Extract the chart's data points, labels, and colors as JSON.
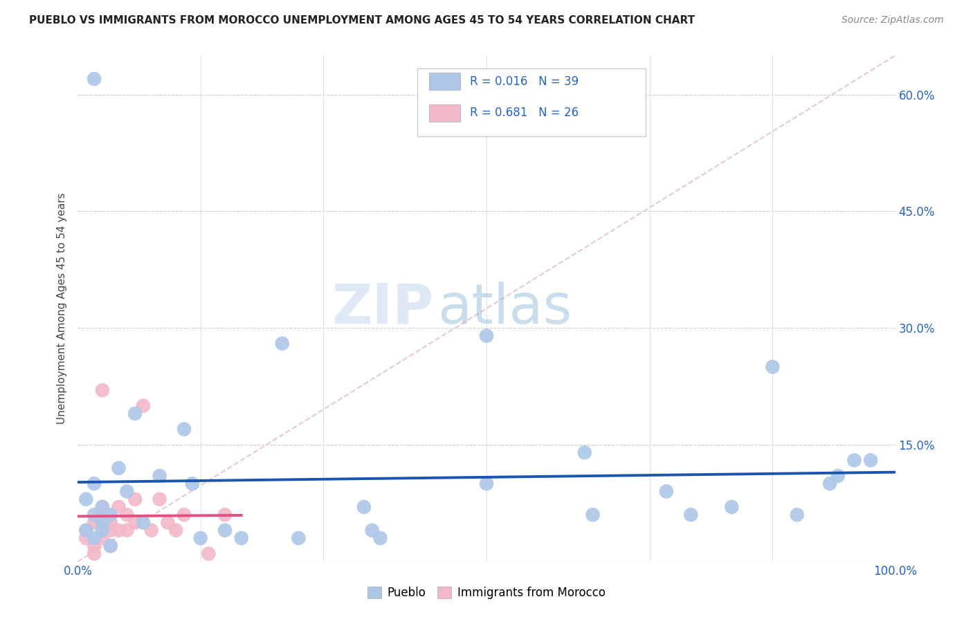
{
  "title": "PUEBLO VS IMMIGRANTS FROM MOROCCO UNEMPLOYMENT AMONG AGES 45 TO 54 YEARS CORRELATION CHART",
  "source": "Source: ZipAtlas.com",
  "ylabel": "Unemployment Among Ages 45 to 54 years",
  "background_color": "#ffffff",
  "legend_r1": "R = 0.016",
  "legend_n1": "N = 39",
  "legend_r2": "R = 0.681",
  "legend_n2": "N = 26",
  "pueblo_color": "#adc6e8",
  "pueblo_line_color": "#1a56b0",
  "morocco_color": "#f2b8c8",
  "morocco_line_color": "#e05080",
  "diagonal_color": "#e8c8d0",
  "watermark_zip": "ZIP",
  "watermark_atlas": "atlas",
  "xlim": [
    0.0,
    1.0
  ],
  "ylim": [
    0.0,
    0.65
  ],
  "ytick_positions": [
    0.0,
    0.15,
    0.3,
    0.45,
    0.6
  ],
  "pueblo_x": [
    0.02,
    0.03,
    0.04,
    0.03,
    0.01,
    0.02,
    0.02,
    0.01,
    0.03,
    0.04,
    0.05,
    0.06,
    0.08,
    0.07,
    0.1,
    0.13,
    0.14,
    0.15,
    0.18,
    0.2,
    0.25,
    0.27,
    0.35,
    0.36,
    0.37,
    0.5,
    0.5,
    0.62,
    0.63,
    0.72,
    0.75,
    0.8,
    0.85,
    0.88,
    0.92,
    0.93,
    0.95,
    0.97,
    0.02
  ],
  "pueblo_y": [
    0.03,
    0.04,
    0.02,
    0.05,
    0.08,
    0.1,
    0.06,
    0.04,
    0.07,
    0.06,
    0.12,
    0.09,
    0.05,
    0.19,
    0.11,
    0.17,
    0.1,
    0.03,
    0.04,
    0.03,
    0.28,
    0.03,
    0.07,
    0.04,
    0.03,
    0.1,
    0.29,
    0.14,
    0.06,
    0.09,
    0.06,
    0.07,
    0.25,
    0.06,
    0.1,
    0.11,
    0.13,
    0.13,
    0.62
  ],
  "morocco_x": [
    0.01,
    0.01,
    0.02,
    0.02,
    0.02,
    0.03,
    0.03,
    0.03,
    0.04,
    0.04,
    0.04,
    0.05,
    0.05,
    0.06,
    0.06,
    0.07,
    0.07,
    0.08,
    0.09,
    0.1,
    0.11,
    0.12,
    0.13,
    0.16,
    0.18,
    0.03
  ],
  "morocco_y": [
    0.03,
    0.04,
    0.02,
    0.05,
    0.01,
    0.03,
    0.06,
    0.07,
    0.04,
    0.05,
    0.02,
    0.04,
    0.07,
    0.04,
    0.06,
    0.05,
    0.08,
    0.2,
    0.04,
    0.08,
    0.05,
    0.04,
    0.06,
    0.01,
    0.06,
    0.22
  ]
}
